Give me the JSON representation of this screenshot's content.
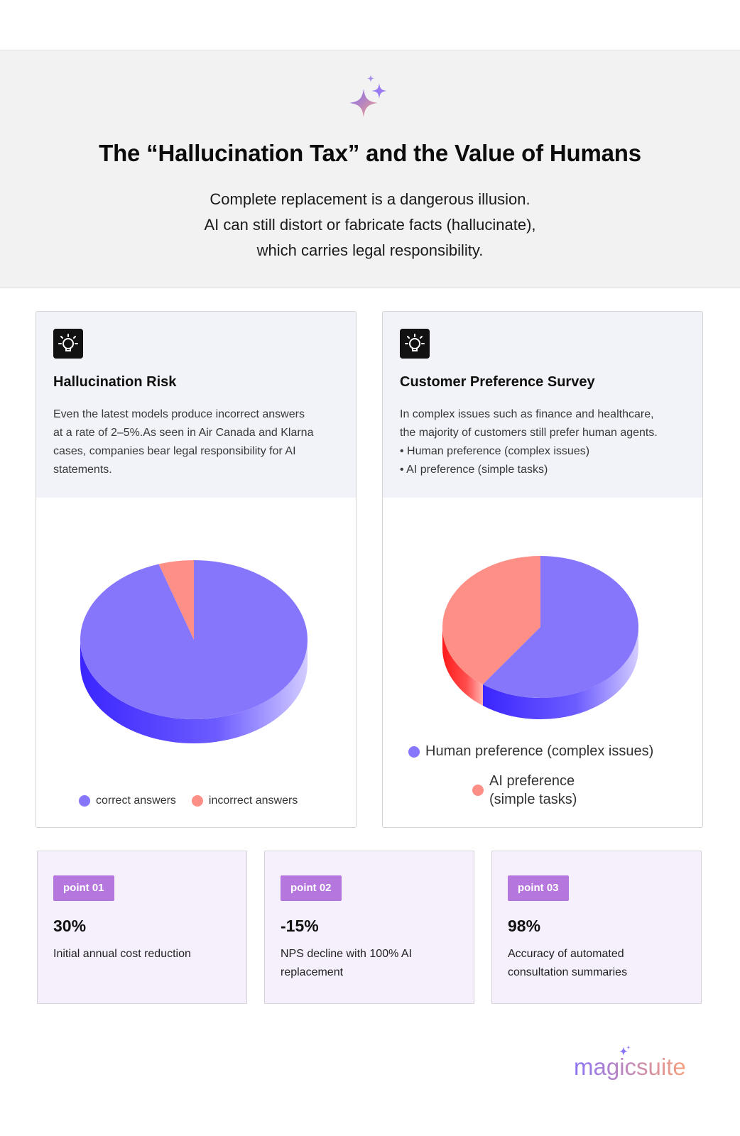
{
  "header": {
    "title": "The “Hallucination Tax” and the Value of Humans",
    "subtitle_lines": [
      "Complete replacement is a dangerous illusion.",
      "AI can still distort or fabricate facts (hallucinate),",
      "which carries legal responsibility."
    ]
  },
  "cards": [
    {
      "icon": "lightbulb-icon",
      "title": "Hallucination Risk",
      "description": "Even the latest models produce incorrect answers\n at a rate of 2–5%.As seen in Air Canada and Klarna\ncases, companies bear legal responsibility for AI\nstatements."
    },
    {
      "icon": "lightbulb-icon",
      "title": "Customer Preference Survey",
      "description": "In complex issues such as finance and healthcare,\n the majority of customers still prefer human agents.\n• Human preference (complex issues)\n • AI preference (simple tasks)"
    }
  ],
  "chart_data": [
    {
      "type": "pie",
      "categories": [
        "correct answers",
        "incorrect answers"
      ],
      "values": [
        95,
        5
      ],
      "colors": [
        "#8676fc",
        "#fd8f86"
      ],
      "legend_position": "bottom"
    },
    {
      "type": "pie",
      "categories": [
        "Human preference (complex issues)",
        "AI preference (simple tasks)"
      ],
      "values": [
        60,
        40
      ],
      "colors": [
        "#8676fc",
        "#fd8f86"
      ],
      "legend_position": "bottom"
    }
  ],
  "points": [
    {
      "tag": "point 01",
      "value": "30%",
      "text": "Initial annual cost reduction"
    },
    {
      "tag": "point 02",
      "value": "-15%",
      "text": "NPS decline with 100% AI replacement"
    },
    {
      "tag": "point 03",
      "value": "98%",
      "text": "Accuracy of automated consultation summaries"
    }
  ],
  "brand": {
    "name": "magicsuite"
  },
  "colors": {
    "accent_purple": "#8676fc",
    "accent_salmon": "#fd8f86",
    "tag_purple": "#b577dd"
  }
}
